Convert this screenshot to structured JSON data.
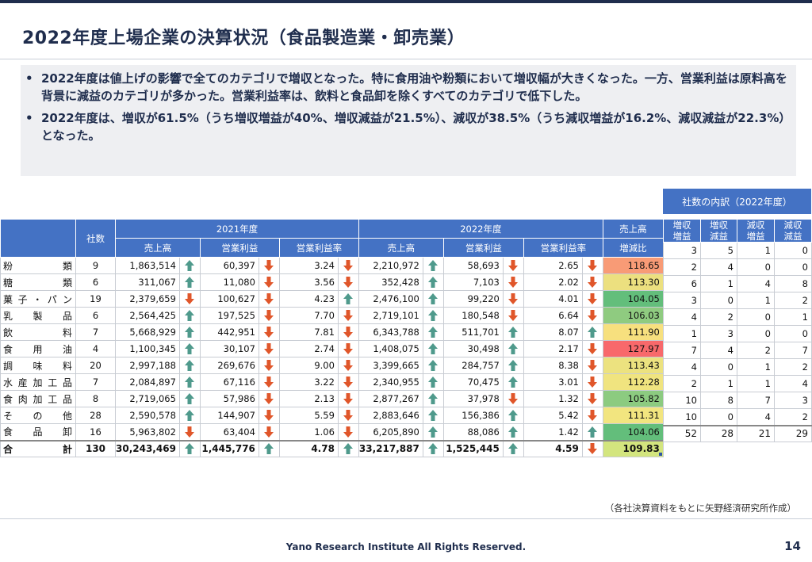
{
  "title": "2022年度上場企業の決算状況（食品製造業・卸売業）",
  "bullets": [
    "2022年度は値上げの影響で全てのカテゴリで増収となった。特に食用油や粉類において増収幅が大きくなった。一方、営業利益は原料高を背景に減益のカテゴリが多かった。営業利益率は、飲料と食品卸を除くすべてのカテゴリで低下した。",
    "2022年度は、増収が61.5%（うち増収増益が40%、増収減益が21.5%）、減収が38.5%（うち減収増益が16.2%、減収減益が22.3%）となった。"
  ],
  "bullet_marker": "•",
  "breakdown_title": "社数の内訳（2022年度）",
  "headers": {
    "count": "社数",
    "y2021": "2021年度",
    "y2022": "2022年度",
    "sales": "売上高",
    "op_profit": "営業利益",
    "op_margin": "営業利益率",
    "ratio_line1": "売上高",
    "ratio_line2": "増減比",
    "b1_l1": "増収",
    "b1_l2": "増益",
    "b2_l1": "増収",
    "b2_l2": "減益",
    "b3_l1": "減収",
    "b3_l2": "増益",
    "b4_l1": "減収",
    "b4_l2": "減益"
  },
  "colors": {
    "header_blue": "#4472c4",
    "arrow_up": "#4f9a8c",
    "arrow_down": "#e0562a"
  },
  "rows": [
    {
      "cat": "粉類",
      "count": "9",
      "s21": "1,863,514",
      "s21a": "up",
      "p21": "60,397",
      "p21a": "down",
      "m21": "3.24",
      "m21a": "down",
      "s22": "2,210,972",
      "s22a": "up",
      "p22": "58,693",
      "p22a": "down",
      "m22": "2.65",
      "m22a": "down",
      "ratio": "118.65",
      "color": "#f89b76",
      "b": [
        "3",
        "5",
        "1",
        "0"
      ]
    },
    {
      "cat": "糖類",
      "count": "6",
      "s21": "311,067",
      "s21a": "up",
      "p21": "11,080",
      "p21a": "down",
      "m21": "3.56",
      "m21a": "down",
      "s22": "352,428",
      "s22a": "up",
      "p22": "7,103",
      "p22a": "down",
      "m22": "2.02",
      "m22a": "down",
      "ratio": "113.30",
      "color": "#ece07f",
      "b": [
        "2",
        "4",
        "0",
        "0"
      ]
    },
    {
      "cat": "菓子・パン",
      "count": "19",
      "s21": "2,379,659",
      "s21a": "down",
      "p21": "100,627",
      "p21a": "down",
      "m21": "4.23",
      "m21a": "up",
      "s22": "2,476,100",
      "s22a": "up",
      "p22": "99,220",
      "p22a": "down",
      "m22": "4.01",
      "m22a": "down",
      "ratio": "104.05",
      "color": "#63be7b",
      "b": [
        "6",
        "1",
        "4",
        "8"
      ]
    },
    {
      "cat": "乳製品",
      "count": "6",
      "s21": "2,564,425",
      "s21a": "up",
      "p21": "197,525",
      "p21a": "down",
      "m21": "7.70",
      "m21a": "down",
      "s22": "2,719,101",
      "s22a": "up",
      "p22": "180,548",
      "p22a": "down",
      "m22": "6.64",
      "m22a": "down",
      "ratio": "106.03",
      "color": "#8fcb80",
      "b": [
        "3",
        "0",
        "1",
        "2"
      ]
    },
    {
      "cat": "飲料",
      "count": "7",
      "s21": "5,668,929",
      "s21a": "up",
      "p21": "442,951",
      "p21a": "down",
      "m21": "7.81",
      "m21a": "down",
      "s22": "6,343,788",
      "s22a": "up",
      "p22": "511,701",
      "p22a": "up",
      "m22": "8.07",
      "m22a": "up",
      "ratio": "111.90",
      "color": "#f7e07e",
      "b": [
        "4",
        "2",
        "0",
        "1"
      ]
    },
    {
      "cat": "食用油",
      "count": "4",
      "s21": "1,100,345",
      "s21a": "up",
      "p21": "30,107",
      "p21a": "down",
      "m21": "2.74",
      "m21a": "down",
      "s22": "1,408,075",
      "s22a": "up",
      "p22": "30,498",
      "p22a": "up",
      "m22": "2.17",
      "m22a": "down",
      "ratio": "127.97",
      "color": "#f8696b",
      "b": [
        "1",
        "3",
        "0",
        "0"
      ]
    },
    {
      "cat": "調味料",
      "count": "20",
      "s21": "2,997,188",
      "s21a": "up",
      "p21": "269,676",
      "p21a": "down",
      "m21": "9.00",
      "m21a": "down",
      "s22": "3,399,665",
      "s22a": "up",
      "p22": "284,757",
      "p22a": "up",
      "m22": "8.38",
      "m22a": "down",
      "ratio": "113.43",
      "color": "#ece27f",
      "b": [
        "7",
        "4",
        "2",
        "7"
      ]
    },
    {
      "cat": "水産加工品",
      "count": "7",
      "s21": "2,084,897",
      "s21a": "up",
      "p21": "67,116",
      "p21a": "down",
      "m21": "3.22",
      "m21a": "down",
      "s22": "2,340,955",
      "s22a": "up",
      "p22": "70,475",
      "p22a": "up",
      "m22": "3.01",
      "m22a": "down",
      "ratio": "112.28",
      "color": "#f0e47f",
      "b": [
        "4",
        "0",
        "1",
        "2"
      ]
    },
    {
      "cat": "食肉加工品",
      "count": "8",
      "s21": "2,719,065",
      "s21a": "up",
      "p21": "57,986",
      "p21a": "down",
      "m21": "2.13",
      "m21a": "down",
      "s22": "2,877,267",
      "s22a": "up",
      "p22": "37,978",
      "p22a": "down",
      "m22": "1.32",
      "m22a": "down",
      "ratio": "105.82",
      "color": "#8ccb80",
      "b": [
        "2",
        "1",
        "1",
        "4"
      ]
    },
    {
      "cat": "その他",
      "count": "28",
      "s21": "2,590,578",
      "s21a": "up",
      "p21": "144,907",
      "p21a": "down",
      "m21": "5.59",
      "m21a": "down",
      "s22": "2,883,646",
      "s22a": "up",
      "p22": "156,386",
      "p22a": "up",
      "m22": "5.42",
      "m22a": "down",
      "ratio": "111.31",
      "color": "#f2e57f",
      "b": [
        "10",
        "8",
        "7",
        "3"
      ]
    },
    {
      "cat": "食品卸",
      "count": "16",
      "s21": "5,963,802",
      "s21a": "down",
      "p21": "63,404",
      "p21a": "down",
      "m21": "1.06",
      "m21a": "down",
      "s22": "6,205,890",
      "s22a": "up",
      "p22": "88,086",
      "p22a": "up",
      "m22": "1.42",
      "m22a": "up",
      "ratio": "104.06",
      "color": "#63be7b",
      "b": [
        "10",
        "0",
        "4",
        "2"
      ]
    }
  ],
  "total": {
    "cat": "合計",
    "count": "130",
    "s21": "30,243,469",
    "s21a": "up",
    "p21": "1,445,776",
    "p21a": "up",
    "m21": "4.78",
    "m21a": "up",
    "s22": "33,217,887",
    "s22a": "up",
    "p22": "1,525,445",
    "p22a": "up",
    "m22": "4.59",
    "m22a": "down",
    "ratio": "109.83",
    "color": "#d3e57e",
    "b": [
      "52",
      "28",
      "21",
      "29"
    ]
  },
  "source_note": "（各社決算資料をもとに矢野経済研究所作成）",
  "copyright": "Yano Research Institute All Rights Reserved.",
  "page_number": "14"
}
